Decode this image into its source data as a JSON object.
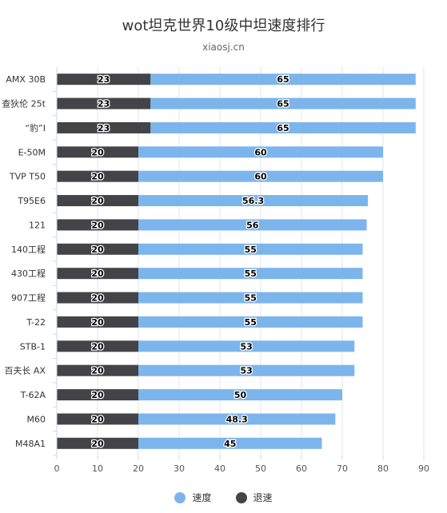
{
  "chart_data": {
    "type": "bar",
    "orientation": "horizontal",
    "stacked": true,
    "title": "wot坦克世界10级中坦速度排行",
    "subtitle": "xiaosj.cn",
    "categories": [
      "AMX 30B",
      "查狄伦 25t",
      "“豹”I",
      "E-50M",
      "TVP T50",
      "T95E6",
      "121",
      "140工程",
      "430工程",
      "907工程",
      "T-22",
      "STB-1",
      "百夫长 AX",
      "T-62A",
      "M60",
      "M48A1"
    ],
    "series": [
      {
        "name": "退速",
        "color": "#434348",
        "values": [
          23,
          23,
          23,
          20,
          20,
          20,
          20,
          20,
          20,
          20,
          20,
          20,
          20,
          20,
          20,
          20
        ]
      },
      {
        "name": "速度",
        "color": "#7cb5ec",
        "values": [
          65,
          65,
          65,
          60,
          60,
          56.3,
          56,
          55,
          55,
          55,
          55,
          53,
          53,
          50,
          48.3,
          45
        ]
      }
    ],
    "xlim": [
      0,
      90
    ],
    "ticks": [
      0,
      10,
      20,
      30,
      40,
      50,
      60,
      70,
      80,
      90
    ],
    "grid": true,
    "legend": {
      "placement": "bottom",
      "items": [
        {
          "name": "速度",
          "color": "#7cb5ec"
        },
        {
          "name": "退速",
          "color": "#434348"
        }
      ]
    }
  }
}
